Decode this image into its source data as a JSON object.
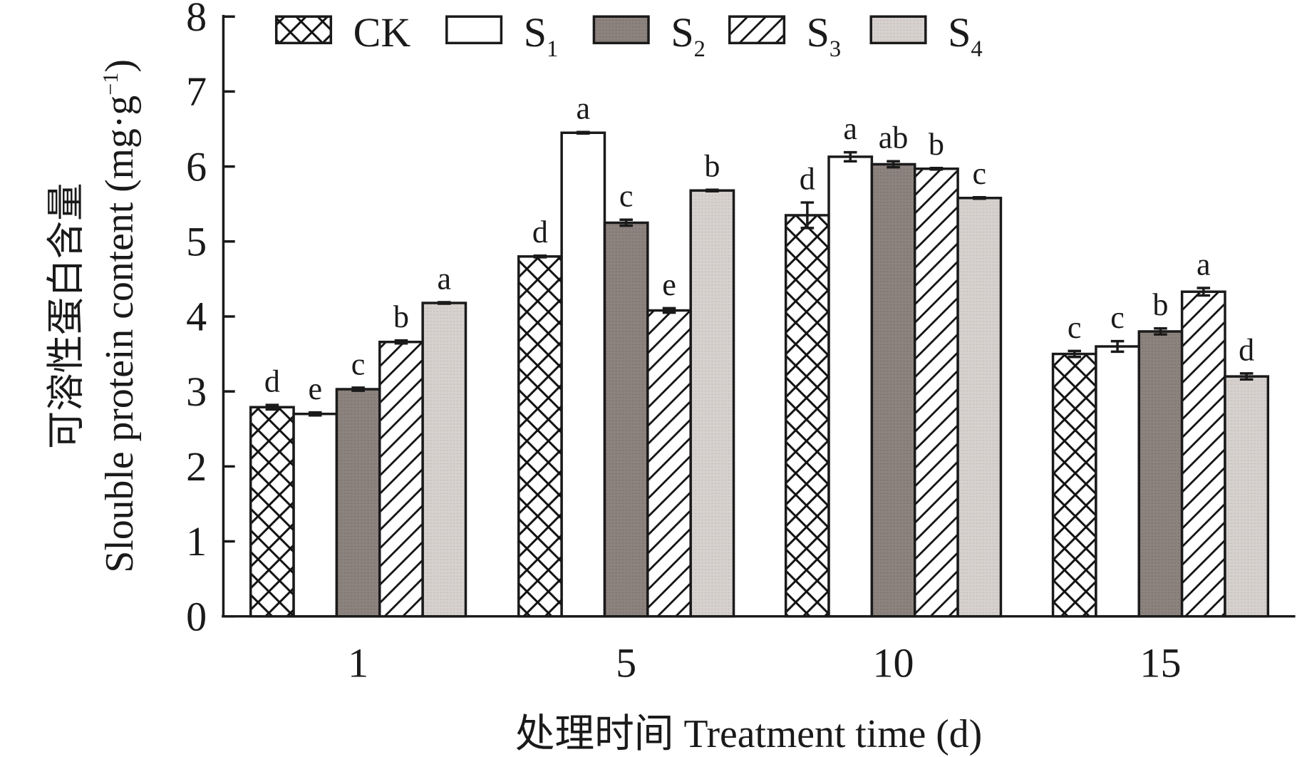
{
  "chart_data": {
    "type": "bar",
    "title": "",
    "xlabel": "处理时间 Treatment time (d)",
    "ylabel_cn": "可溶性蛋白含量",
    "ylabel_en": "Slouble protein content (mg·g",
    "ylabel_sup": "−1",
    "ylabel_close": ")",
    "ylim": [
      0,
      8
    ],
    "yticks": [
      "0",
      "1",
      "2",
      "3",
      "4",
      "5",
      "6",
      "7",
      "8"
    ],
    "categories": [
      "1",
      "5",
      "10",
      "15"
    ],
    "legend_position": "top",
    "series": [
      {
        "name": "CK",
        "base": "CK",
        "sub": "",
        "pattern": "crosshatch",
        "values": [
          2.79,
          4.8,
          5.35,
          3.5
        ],
        "errors": [
          0.03,
          0.01,
          0.17,
          0.04
        ],
        "letters": [
          "d",
          "d",
          "d",
          "c"
        ]
      },
      {
        "name": "S1",
        "base": "S",
        "sub": "1",
        "pattern": "white",
        "values": [
          2.7,
          6.45,
          6.13,
          3.6
        ],
        "errors": [
          0.02,
          0.01,
          0.06,
          0.07
        ],
        "letters": [
          "e",
          "a",
          "a",
          "c"
        ]
      },
      {
        "name": "S2",
        "base": "S",
        "sub": "2",
        "pattern": "dark",
        "values": [
          3.03,
          5.25,
          6.03,
          3.8
        ],
        "errors": [
          0.02,
          0.04,
          0.04,
          0.04
        ],
        "letters": [
          "c",
          "c",
          "ab",
          "b"
        ]
      },
      {
        "name": "S3",
        "base": "S",
        "sub": "3",
        "pattern": "diagonal",
        "values": [
          3.66,
          4.08,
          5.97,
          4.33
        ],
        "errors": [
          0.02,
          0.03,
          0.01,
          0.05
        ],
        "letters": [
          "b",
          "e",
          "b",
          "a"
        ]
      },
      {
        "name": "S4",
        "base": "S",
        "sub": "4",
        "pattern": "light",
        "values": [
          4.18,
          5.68,
          5.58,
          3.2
        ],
        "errors": [
          0.01,
          0.01,
          0.01,
          0.04
        ],
        "letters": [
          "a",
          "b",
          "c",
          "d"
        ]
      }
    ],
    "colors": {
      "dark": "#8c827e",
      "light": "#d6d1ce",
      "axis": "#1a1a1a"
    }
  }
}
